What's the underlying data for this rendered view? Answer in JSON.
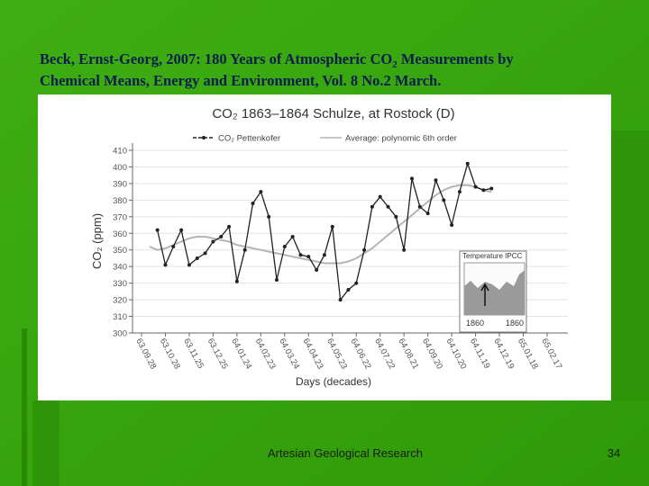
{
  "slide": {
    "title_line1": [
      "Beck, Ernst-Georg, 2007: 180 Years of Atmospheric CO",
      "2",
      " Measurements by"
    ],
    "title_line2": "Chemical Means, Energy and Environment, Vol. 8 No.2 March.",
    "footer": "Artesian Geological Research",
    "page_number": "34"
  },
  "inset": {
    "title": "Temperature IPCC",
    "labels": [
      "1860",
      "1860"
    ]
  },
  "chart_data": {
    "type": "line",
    "title": "CO₂ 1863–1864 Schulze, at Rostock (D)",
    "y_label": "CO₂ (ppm)",
    "x_label": "Days (decades)",
    "categories": [
      "63.09.28",
      null,
      null,
      "63.10.28",
      null,
      null,
      "63.11.25",
      null,
      null,
      "63.12.25",
      null,
      null,
      "64.01.24",
      null,
      null,
      "64.02.23",
      null,
      null,
      "64.03.24",
      null,
      null,
      "64.04.23",
      null,
      null,
      "64.05.23",
      null,
      null,
      "64.06.22",
      null,
      null,
      "64.07.22",
      null,
      null,
      "64.08.21",
      null,
      null,
      "64.09.20",
      null,
      null,
      "64.10.20",
      null,
      null,
      "64.11.19",
      null,
      null,
      "64.12.19",
      null,
      null,
      "65.01.18",
      null,
      null,
      "65.02.17"
    ],
    "series": [
      {
        "name": "CO₂ Pettenkofer",
        "color": "#222222",
        "markers": true,
        "values": [
          null,
          null,
          362,
          341,
          352,
          362,
          341,
          345,
          348,
          355,
          358,
          364,
          331,
          350,
          378,
          385,
          370,
          332,
          352,
          358,
          347,
          346,
          338,
          347,
          364,
          320,
          326,
          330,
          350,
          376,
          382,
          376,
          370,
          350,
          393,
          376,
          372,
          392,
          380,
          365,
          385,
          402,
          388,
          386,
          387,
          null,
          null,
          null,
          null,
          null,
          null,
          null
        ]
      },
      {
        "name": "Average: polynomic 6th order",
        "color": "#b4b4b4",
        "markers": false,
        "values": [
          null,
          352,
          350,
          351,
          353,
          355,
          357,
          358,
          358,
          357,
          356,
          355,
          353,
          352,
          351,
          350,
          349,
          348,
          347,
          346,
          345,
          344,
          343,
          342,
          342,
          342,
          343,
          345,
          348,
          351,
          355,
          359,
          363,
          367,
          371,
          375,
          379,
          383,
          386,
          388,
          389,
          389,
          388,
          386,
          385,
          null,
          null,
          null,
          null,
          null,
          null,
          null
        ]
      }
    ],
    "ylim": [
      300,
      410
    ],
    "yticks": [
      300,
      310,
      320,
      330,
      340,
      350,
      360,
      370,
      380,
      390,
      400,
      410
    ],
    "grid": true
  }
}
